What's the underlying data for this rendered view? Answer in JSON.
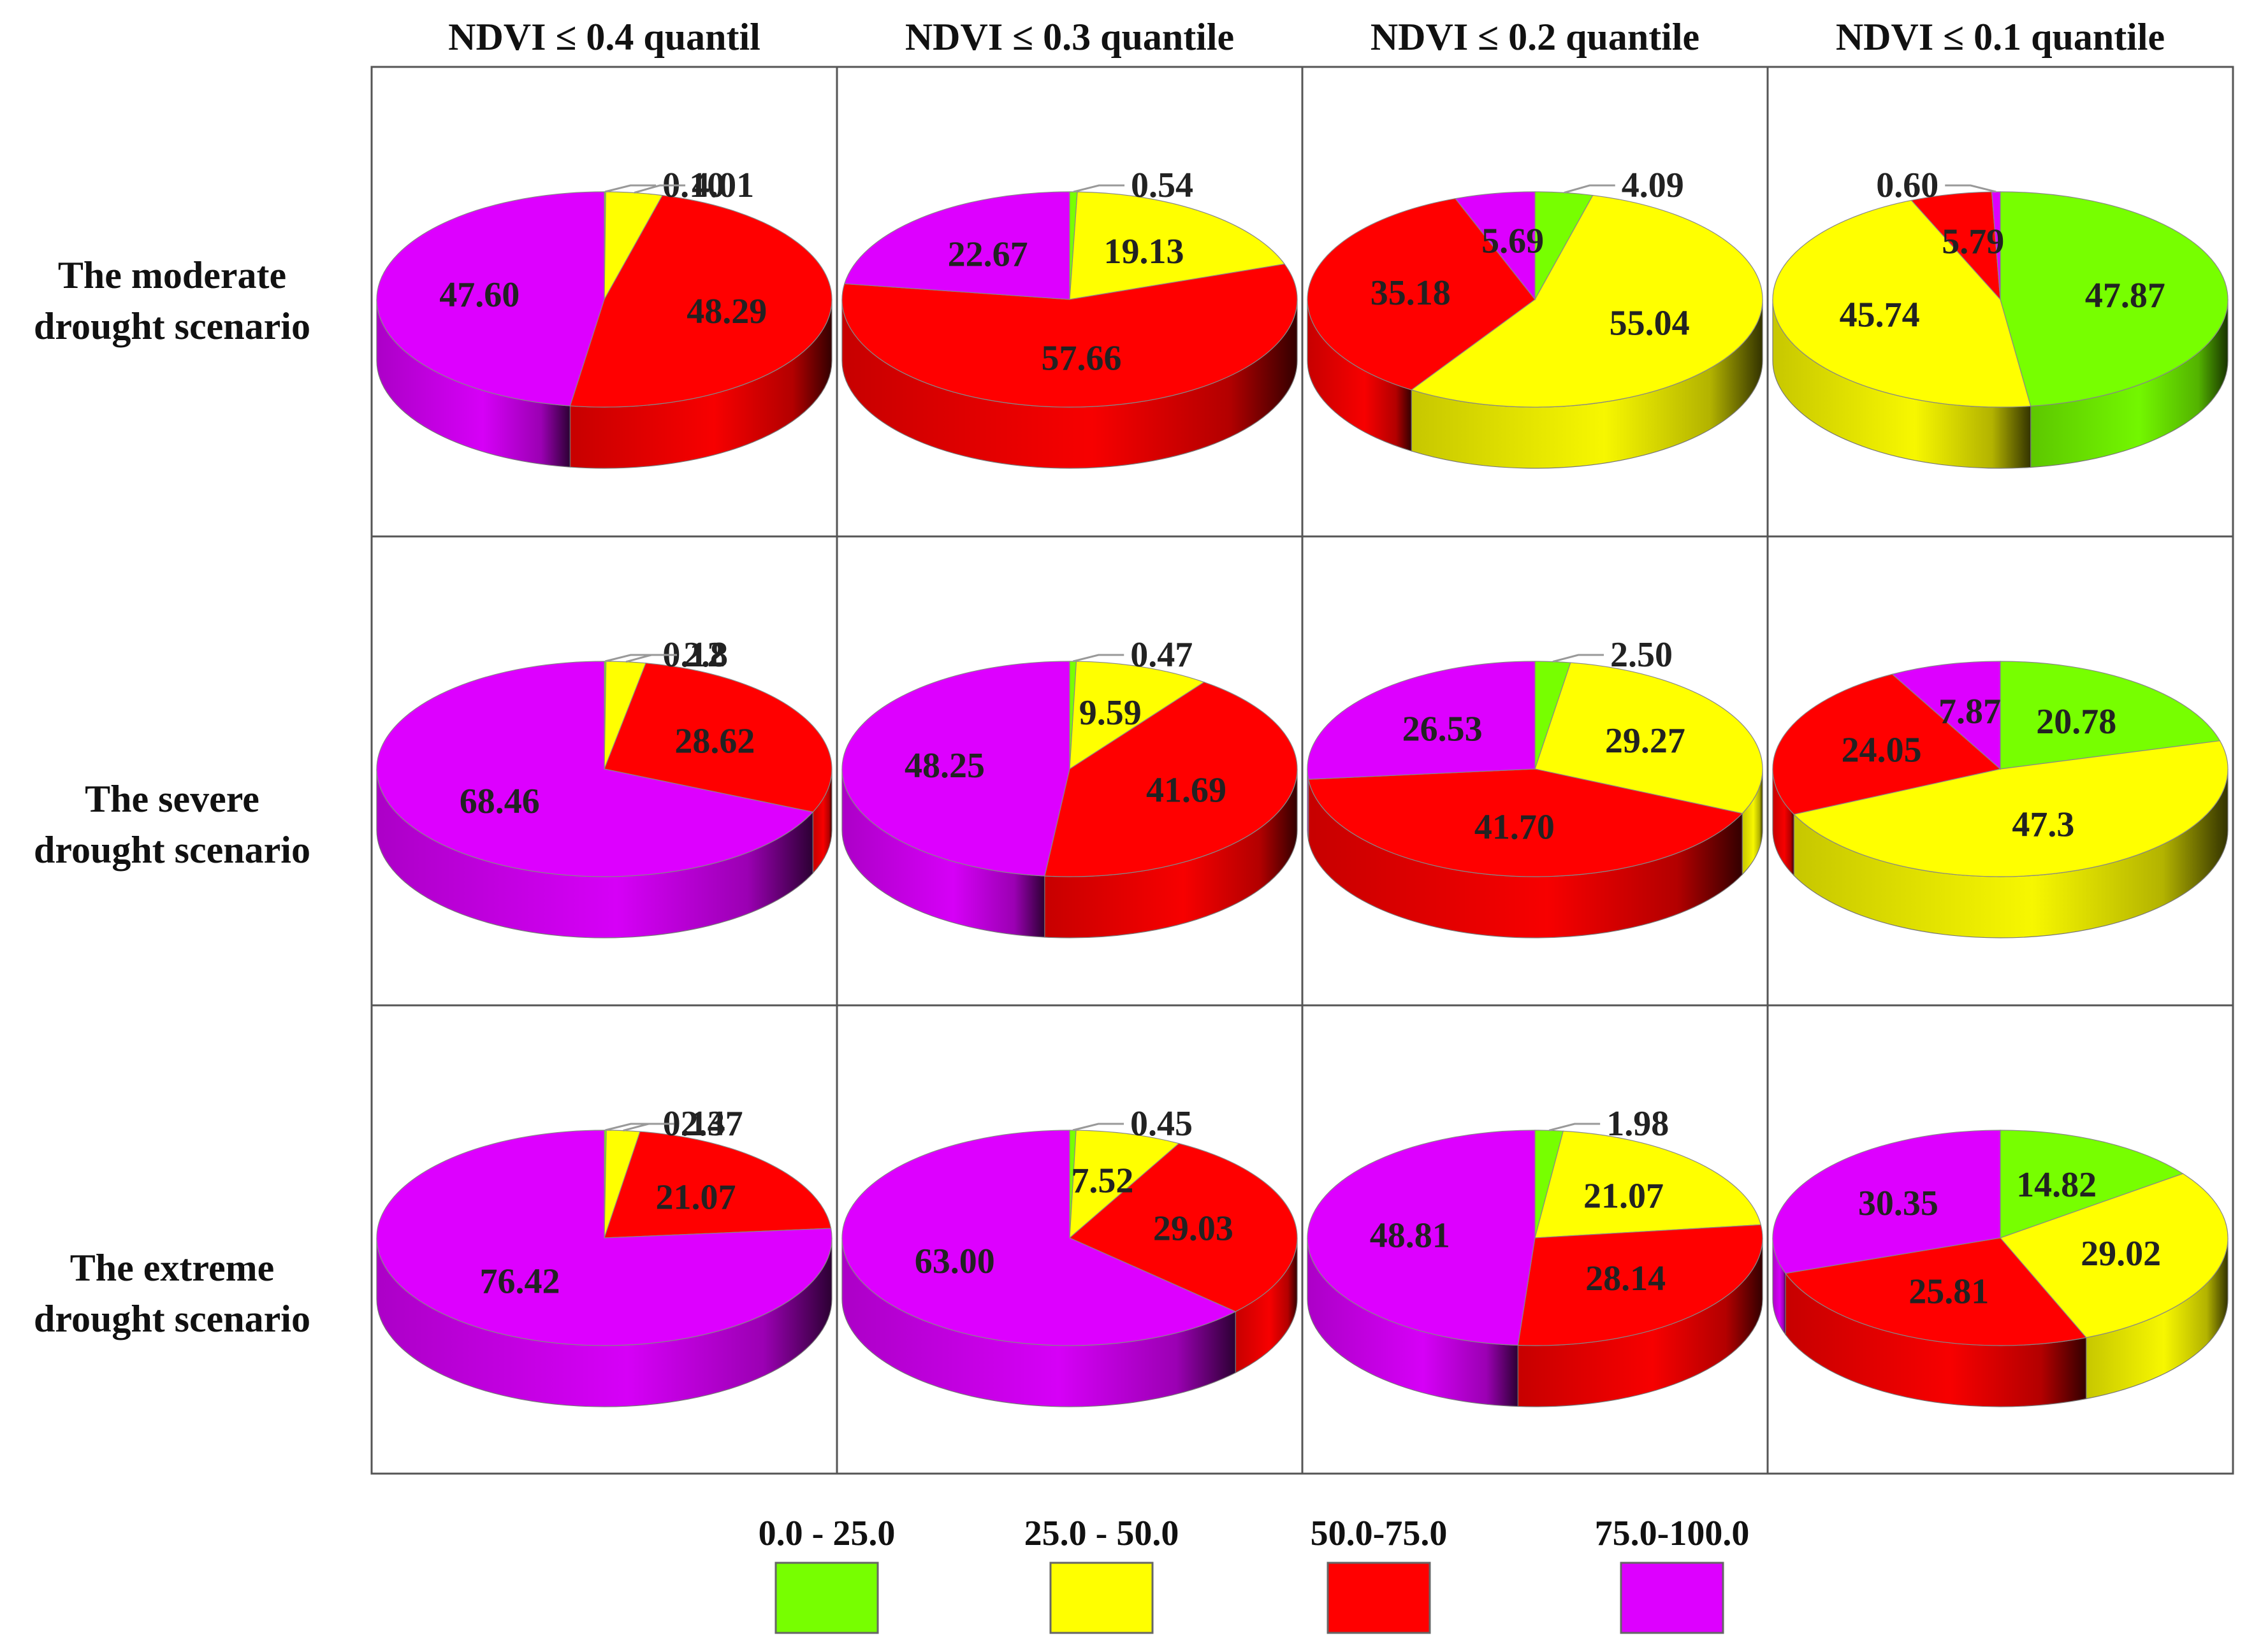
{
  "chart_data": {
    "type": "pie",
    "title": "",
    "categories": [
      "0.0 - 25.0",
      "25.0 - 50.0",
      "50.0-75.0",
      "75.0-100.0"
    ],
    "colors": [
      "#77ff00",
      "#ffff00",
      "#ff0000",
      "#dd00ff"
    ],
    "columns": [
      "NDVI ≤ 0.4 quantil",
      "NDVI ≤ 0.3 quantile",
      "NDVI ≤ 0.2 quantile",
      "NDVI ≤ 0.1 quantile"
    ],
    "rows": [
      [
        "The moderate",
        "drought scenario"
      ],
      [
        "The severe",
        "drought scenario"
      ],
      [
        "The extreme",
        "drought scenario"
      ]
    ],
    "pies": [
      [
        {
          "values": [
            0.1,
            4.01,
            48.29,
            47.6
          ],
          "labels": [
            "0.10",
            "4.01",
            "48.29",
            "47.60"
          ]
        },
        {
          "values": [
            0.54,
            19.13,
            57.66,
            22.67
          ],
          "labels": [
            "0.54",
            "19.13",
            "57.66",
            "22.67"
          ]
        },
        {
          "values": [
            4.09,
            55.04,
            35.18,
            5.69
          ],
          "labels": [
            "4.09",
            "55.04",
            "35.18",
            "5.69"
          ]
        },
        {
          "values": [
            47.87,
            45.74,
            5.79,
            0.6
          ],
          "labels": [
            "47.87",
            "45.74",
            "5.79",
            "0.60"
          ]
        }
      ],
      [
        {
          "values": [
            0.12,
            2.8,
            28.62,
            68.46
          ],
          "labels": [
            "0.12",
            "2.8",
            "28.62",
            "68.46"
          ]
        },
        {
          "values": [
            0.47,
            9.59,
            41.69,
            48.25
          ],
          "labels": [
            "0.47",
            "9.59",
            "41.69",
            "48.25"
          ]
        },
        {
          "values": [
            2.5,
            29.27,
            41.7,
            26.53
          ],
          "labels": [
            "2.50",
            "29.27",
            "41.70",
            "26.53"
          ]
        },
        {
          "values": [
            20.78,
            47.3,
            24.05,
            7.87
          ],
          "labels": [
            "20.78",
            "47.3",
            "24.05",
            "7.87"
          ]
        }
      ],
      [
        {
          "values": [
            0.14,
            2.37,
            21.07,
            76.42
          ],
          "labels": [
            "0.14",
            "2.37",
            "21.07",
            "76.42"
          ]
        },
        {
          "values": [
            0.45,
            7.52,
            29.03,
            63.0
          ],
          "labels": [
            "0.45",
            "7.52",
            "29.03",
            "63.00"
          ]
        },
        {
          "values": [
            1.98,
            21.07,
            28.14,
            48.81
          ],
          "labels": [
            "1.98",
            "21.07",
            "28.14",
            "48.81"
          ]
        },
        {
          "values": [
            14.82,
            29.02,
            25.81,
            30.35
          ],
          "labels": [
            "14.82",
            "29.02",
            "25.81",
            "30.35"
          ]
        }
      ]
    ]
  }
}
